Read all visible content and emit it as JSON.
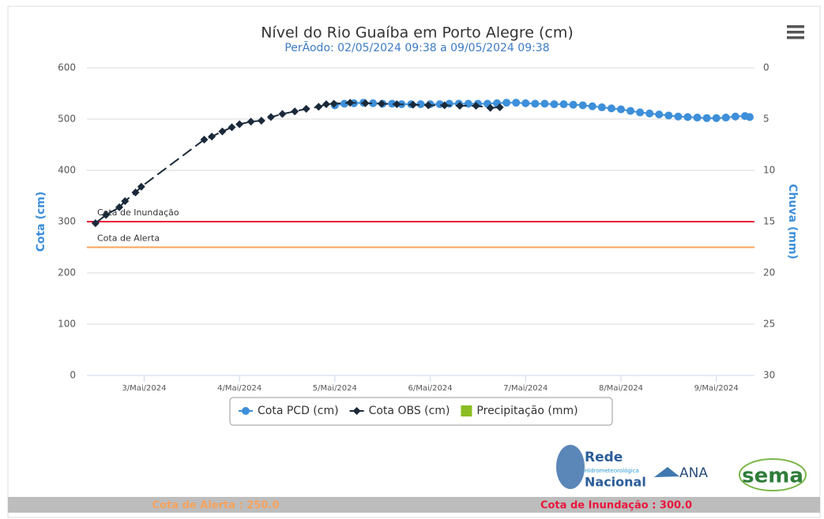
{
  "chart_data": {
    "type": "line",
    "title": "Nível do Rio Guaíba em Porto Alegre (cm)",
    "subtitle": "PerÃodo: 02/05/2024 09:38 a 09/05/2024 09:38",
    "y_label": "Cota (cm)",
    "y2_label": "Chuva (mm)",
    "xlim": [
      2.4,
      9.4
    ],
    "xticks": [
      {
        "value": 3,
        "label": "3/Mai/2024"
      },
      {
        "value": 4,
        "label": "4/Mai/2024"
      },
      {
        "value": 5,
        "label": "5/Mai/2024"
      },
      {
        "value": 6,
        "label": "6/Mai/2024"
      },
      {
        "value": 7,
        "label": "7/Mai/2024"
      },
      {
        "value": 8,
        "label": "8/Mai/2024"
      },
      {
        "value": 9,
        "label": "9/Mai/2024"
      }
    ],
    "ylim": [
      0,
      600
    ],
    "yticks": [
      0,
      100,
      200,
      300,
      400,
      500,
      600
    ],
    "y2lim": [
      0,
      30
    ],
    "y2ticks": [
      0,
      5,
      10,
      15,
      20,
      25,
      30
    ],
    "y2_reversed": true,
    "grid": true,
    "plot_lines": [
      {
        "label": "Cota de Inundação",
        "value": 300,
        "color": "#e8173d"
      },
      {
        "label": "Cota de Alerta",
        "value": 250,
        "color": "#f7a35c"
      }
    ],
    "series": [
      {
        "name": "Cota PCD (cm)",
        "color": "#3d8fd9",
        "marker": "circle",
        "x": [
          5.0,
          5.1,
          5.2,
          5.3,
          5.4,
          5.5,
          5.6,
          5.7,
          5.8,
          5.9,
          6.0,
          6.1,
          6.2,
          6.3,
          6.4,
          6.5,
          6.6,
          6.7,
          6.8,
          6.9,
          7.0,
          7.1,
          7.2,
          7.3,
          7.4,
          7.5,
          7.6,
          7.7,
          7.8,
          7.9,
          8.0,
          8.1,
          8.2,
          8.3,
          8.4,
          8.5,
          8.6,
          8.7,
          8.8,
          8.9,
          9.0,
          9.1,
          9.2,
          9.3,
          9.35
        ],
        "values": [
          527,
          530,
          531,
          532,
          531,
          530,
          530,
          529,
          529,
          529,
          529,
          529,
          530,
          530,
          530,
          530,
          530,
          531,
          532,
          532,
          531,
          530,
          530,
          529,
          529,
          528,
          527,
          525,
          523,
          521,
          519,
          516,
          513,
          511,
          509,
          507,
          505,
          504,
          503,
          502,
          502,
          503,
          505,
          506,
          504
        ]
      },
      {
        "name": "Cota OBS (cm)",
        "color": "#1b2a3a",
        "marker": "diamond",
        "dashed": true,
        "x": [
          2.49,
          2.6,
          2.74,
          2.8,
          2.91,
          2.97,
          3.63,
          3.71,
          3.82,
          3.92,
          4.0,
          4.12,
          4.23,
          4.33,
          4.45,
          4.58,
          4.7,
          4.83,
          4.91,
          4.99,
          5.16,
          5.32,
          5.49,
          5.65,
          5.82,
          5.98,
          6.15,
          6.31,
          6.48,
          6.63,
          6.73
        ],
        "values": [
          297,
          313,
          328,
          340,
          357,
          368,
          460,
          466,
          476,
          484,
          490,
          495,
          497,
          504,
          510,
          515,
          520,
          524,
          529,
          530,
          532,
          531,
          530,
          529,
          528,
          527,
          527,
          526,
          526,
          522,
          523
        ]
      },
      {
        "name": "Precipitação (mm)",
        "color": "#8bbc21",
        "marker": "bar",
        "axis": "y2",
        "x": [],
        "values": []
      }
    ]
  },
  "footer": {
    "alert": "Cota de Alerta : 250.0",
    "flood": "Cota de Inundação : 300.0"
  },
  "logos": {
    "rede": "Rede",
    "hidro": "Hidrometeorológica",
    "nacional": "Nacional",
    "ana": "ANA",
    "sema": "sema"
  }
}
